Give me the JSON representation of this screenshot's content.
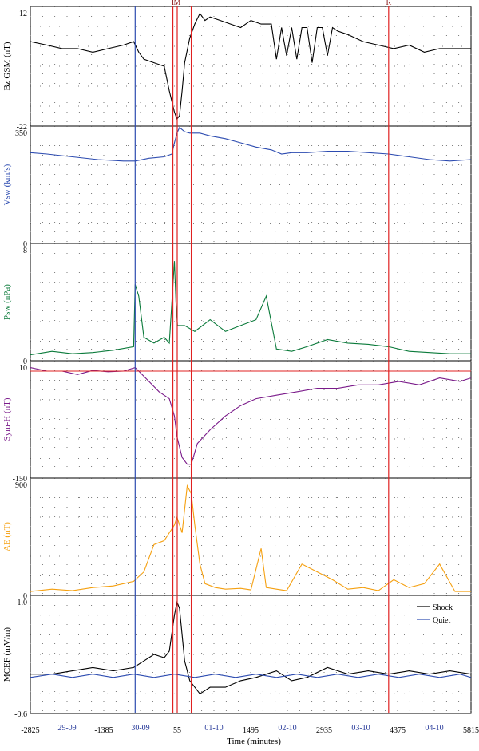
{
  "chart_data": {
    "type": "line",
    "xlabel": "Time (minutes)",
    "xlim": [
      -2825,
      5815
    ],
    "x_ticks": [
      "-2825",
      "-1385",
      "55",
      "1495",
      "2935",
      "4375",
      "5815"
    ],
    "date_labels": [
      "29-09",
      "30-09",
      "01-10",
      "02-10",
      "03-10",
      "04-10"
    ],
    "date_positions": [
      -2105,
      -665,
      775,
      2215,
      3655,
      5095
    ],
    "event_markers": [
      {
        "label": "I",
        "x": -30
      },
      {
        "label": "M",
        "x": 55
      },
      {
        "label": "",
        "x": 330
      },
      {
        "label": "R",
        "x": 4200
      }
    ],
    "quiet_marker_x": -770,
    "legend": [
      "Shock",
      "Quiet"
    ],
    "colors": {
      "shock": "#000000",
      "quiet": "#2c4bb0",
      "vsw": "#2c4bb0",
      "psw": "#0a7a3a",
      "symh": "#7a1a8a",
      "ae": "#f5a010",
      "markers": "#e02020"
    },
    "panels": [
      {
        "ylabel": "Bz GSM (nT)",
        "ylim": [
          -22,
          12
        ],
        "yticks": [
          "12",
          "-22"
        ],
        "series": [
          {
            "name": "",
            "color": "#000000",
            "x": [
              -2825,
              -2500,
              -2200,
              -1900,
              -1600,
              -1300,
              -1000,
              -800,
              -700,
              -600,
              -400,
              -200,
              -100,
              0,
              50,
              100,
              150,
              200,
              300,
              400,
              500,
              600,
              700,
              900,
              1100,
              1300,
              1500,
              1700,
              1900,
              2000,
              2100,
              2200,
              2300,
              2400,
              2500,
              2600,
              2700,
              2800,
              2900,
              3000,
              3100,
              3200,
              3400,
              3700,
              4000,
              4300,
              4600,
              4900,
              5200,
              5500,
              5815
            ],
            "y": [
              2,
              1,
              0,
              0,
              -1,
              0,
              1,
              2,
              -1,
              -3,
              -4,
              -5,
              -12,
              -18,
              -20,
              -19,
              -12,
              -4,
              3,
              7,
              10,
              8,
              9,
              8,
              7,
              6,
              8,
              7,
              7,
              -3,
              6,
              -2,
              6,
              -3,
              6,
              6,
              -4,
              6,
              6,
              -2,
              6,
              5,
              4,
              2,
              1,
              0,
              1,
              -1,
              0,
              0,
              0
            ]
          }
        ]
      },
      {
        "ylabel": "Vsw (km/s)",
        "ylim": [
          0,
          420
        ],
        "yticks": [
          "350",
          "0"
        ],
        "series": [
          {
            "name": "",
            "color": "#2c4bb0",
            "x": [
              -2825,
              -2500,
              -2000,
              -1500,
              -1000,
              -770,
              -500,
              -200,
              -50,
              0,
              50,
              100,
              200,
              300,
              500,
              700,
              1000,
              1300,
              1600,
              1900,
              2100,
              2300,
              2600,
              3000,
              3400,
              3800,
              4200,
              4600,
              5000,
              5400,
              5815
            ],
            "y": [
              325,
              320,
              310,
              300,
              295,
              295,
              305,
              310,
              320,
              360,
              395,
              415,
              400,
              395,
              395,
              385,
              375,
              360,
              345,
              335,
              320,
              325,
              325,
              330,
              330,
              325,
              320,
              310,
              300,
              295,
              300
            ]
          }
        ]
      },
      {
        "ylabel": "Psw (nPa)",
        "ylim": [
          0,
          10
        ],
        "yticks": [
          "8",
          "0"
        ],
        "series": [
          {
            "name": "",
            "color": "#0a7a3a",
            "x": [
              -2825,
              -2400,
              -2000,
              -1600,
              -1200,
              -800,
              -770,
              -700,
              -600,
              -400,
              -200,
              -100,
              0,
              30,
              60,
              100,
              200,
              400,
              700,
              1000,
              1300,
              1600,
              1800,
              2000,
              2300,
              2600,
              3000,
              3400,
              3800,
              4200,
              4600,
              5000,
              5400,
              5815
            ],
            "y": [
              0.5,
              0.8,
              0.6,
              0.7,
              0.9,
              1.2,
              6.5,
              5.5,
              2,
              1.5,
              2,
              1.5,
              8.5,
              5,
              3,
              3,
              3,
              2.5,
              3.5,
              2.5,
              3,
              3.5,
              5.5,
              1,
              0.8,
              1.2,
              1.8,
              1.5,
              1.4,
              1.2,
              0.8,
              0.7,
              0.6,
              0.6
            ]
          }
        ]
      },
      {
        "ylabel": "Sym-H (nT)",
        "ylim": [
          -150,
          20
        ],
        "yticks": [
          "10",
          "-150"
        ],
        "series": [
          {
            "name": "",
            "color": "#7a1a8a",
            "x": [
              -2825,
              -2500,
              -2200,
              -1900,
              -1600,
              -1300,
              -1000,
              -770,
              -700,
              -500,
              -300,
              -100,
              0,
              50,
              150,
              250,
              330,
              450,
              700,
              1000,
              1300,
              1600,
              2000,
              2400,
              2800,
              3200,
              3600,
              4000,
              4400,
              4800,
              5200,
              5600,
              5815
            ],
            "y": [
              10,
              5,
              5,
              0,
              6,
              4,
              5,
              10,
              5,
              -10,
              -25,
              -35,
              -60,
              -90,
              -120,
              -130,
              -130,
              -100,
              -80,
              -60,
              -45,
              -35,
              -30,
              -25,
              -20,
              -20,
              -15,
              -15,
              -10,
              -15,
              -5,
              -10,
              -5
            ]
          }
        ]
      },
      {
        "ylabel": "AE (nT)",
        "ylim": [
          0,
          1500
        ],
        "yticks": [
          "900",
          "0"
        ],
        "series": [
          {
            "name": "",
            "color": "#f5a010",
            "x": [
              -2825,
              -2400,
              -2000,
              -1600,
              -1200,
              -1000,
              -800,
              -600,
              -400,
              -200,
              0,
              50,
              150,
              250,
              330,
              400,
              500,
              600,
              800,
              1000,
              1300,
              1500,
              1700,
              1800,
              2000,
              2200,
              2500,
              2800,
              3100,
              3400,
              3700,
              4000,
              4300,
              4600,
              4900,
              5200,
              5500,
              5815
            ],
            "y": [
              50,
              80,
              60,
              100,
              120,
              150,
              180,
              300,
              650,
              700,
              900,
              1000,
              800,
              1400,
              1300,
              900,
              400,
              150,
              100,
              80,
              90,
              70,
              600,
              100,
              80,
              60,
              400,
              300,
              200,
              80,
              100,
              60,
              200,
              100,
              150,
              400,
              50,
              50
            ]
          }
        ]
      },
      {
        "ylabel": "MCEF (mV/m)",
        "ylim": [
          -0.6,
          1.2
        ],
        "yticks": [
          "1.0",
          "-0.6"
        ],
        "series": [
          {
            "name": "Shock",
            "color": "#000000",
            "x": [
              -2825,
              -2400,
              -2000,
              -1600,
              -1200,
              -800,
              -600,
              -400,
              -200,
              -100,
              0,
              50,
              100,
              150,
              200,
              300,
              500,
              700,
              1000,
              1300,
              1600,
              2000,
              2300,
              2600,
              3000,
              3400,
              3800,
              4200,
              4600,
              5000,
              5400,
              5815
            ],
            "y": [
              0.0,
              0.0,
              0.05,
              0.1,
              0.05,
              0.1,
              0.2,
              0.3,
              0.25,
              0.35,
              0.9,
              1.1,
              1.0,
              0.6,
              0.2,
              -0.1,
              -0.3,
              -0.2,
              -0.2,
              -0.1,
              -0.05,
              0.05,
              -0.1,
              -0.05,
              0.1,
              0.0,
              0.05,
              0.0,
              0.05,
              0.0,
              0.05,
              0.0
            ]
          },
          {
            "name": "Quiet",
            "color": "#2c4bb0",
            "x": [
              -2825,
              -2400,
              -2000,
              -1600,
              -1200,
              -800,
              -400,
              0,
              400,
              800,
              1200,
              1600,
              2000,
              2400,
              2800,
              3200,
              3600,
              4000,
              4400,
              4800,
              5200,
              5600,
              5815
            ],
            "y": [
              -0.05,
              0.0,
              -0.05,
              0.0,
              -0.05,
              0.0,
              -0.05,
              0.0,
              -0.05,
              0.0,
              -0.05,
              0.0,
              -0.05,
              0.0,
              -0.05,
              0.0,
              -0.05,
              0.0,
              -0.05,
              0.0,
              -0.05,
              0.0,
              -0.05
            ]
          }
        ]
      }
    ]
  }
}
